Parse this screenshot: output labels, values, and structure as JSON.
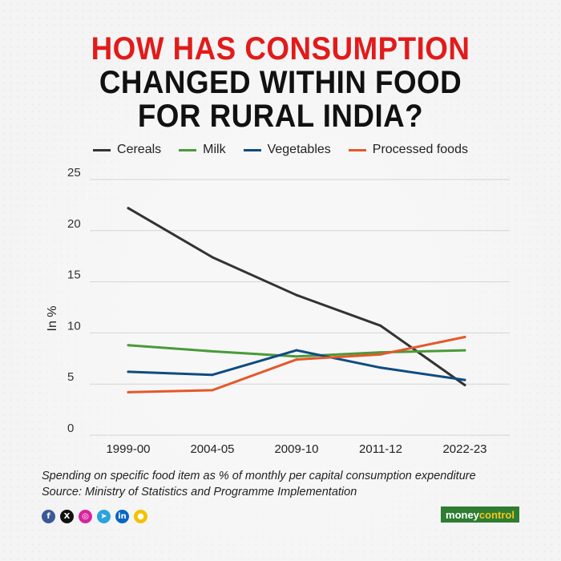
{
  "title": {
    "line1": "HOW HAS CONSUMPTION",
    "line2": "CHANGED WITHIN FOOD",
    "line3": "FOR RURAL INDIA?"
  },
  "colors": {
    "title_accent": "#e11b1b",
    "cereals": "#333333",
    "milk": "#4a9a3a",
    "vegetables": "#0f4c81",
    "processed": "#e5582a"
  },
  "chart_data": {
    "type": "line",
    "title": "HOW HAS CONSUMPTION CHANGED WITHIN FOOD FOR RURAL INDIA?",
    "xlabel": "",
    "ylabel": "In %",
    "categories": [
      "1999-00",
      "2004-05",
      "2009-10",
      "2011-12",
      "2022-23"
    ],
    "ylim": [
      0,
      25
    ],
    "yticks": [
      0,
      5,
      10,
      15,
      20,
      25
    ],
    "grid": true,
    "legend_position": "top",
    "series": [
      {
        "name": "Cereals",
        "color": "#333333",
        "values": [
          22.2,
          17.4,
          13.7,
          10.7,
          4.9
        ]
      },
      {
        "name": "Milk",
        "color": "#4a9a3a",
        "values": [
          8.8,
          8.2,
          7.7,
          8.1,
          8.3
        ]
      },
      {
        "name": "Vegetables",
        "color": "#0f4c81",
        "values": [
          6.2,
          5.9,
          8.3,
          6.6,
          5.4
        ]
      },
      {
        "name": "Processed foods",
        "color": "#e5582a",
        "values": [
          4.2,
          4.4,
          7.4,
          7.9,
          9.6
        ]
      }
    ]
  },
  "footnote": {
    "line1": "Spending on specific food item as % of monthly per capital consumption expenditure",
    "line2": "Source: Ministry of Statistics and Programme Implementation"
  },
  "social": [
    {
      "name": "facebook-icon",
      "glyph": "f",
      "color": "#3b5998"
    },
    {
      "name": "x-icon",
      "glyph": "X",
      "color": "#111111"
    },
    {
      "name": "instagram-icon",
      "glyph": "◎",
      "color": "#d6249f"
    },
    {
      "name": "telegram-icon",
      "glyph": "➤",
      "color": "#2aa3df"
    },
    {
      "name": "linkedin-icon",
      "glyph": "in",
      "color": "#0a66c2"
    },
    {
      "name": "koo-icon",
      "glyph": "●",
      "color": "#f2c200"
    }
  ],
  "brand": {
    "part1": "money",
    "part2": "control"
  }
}
